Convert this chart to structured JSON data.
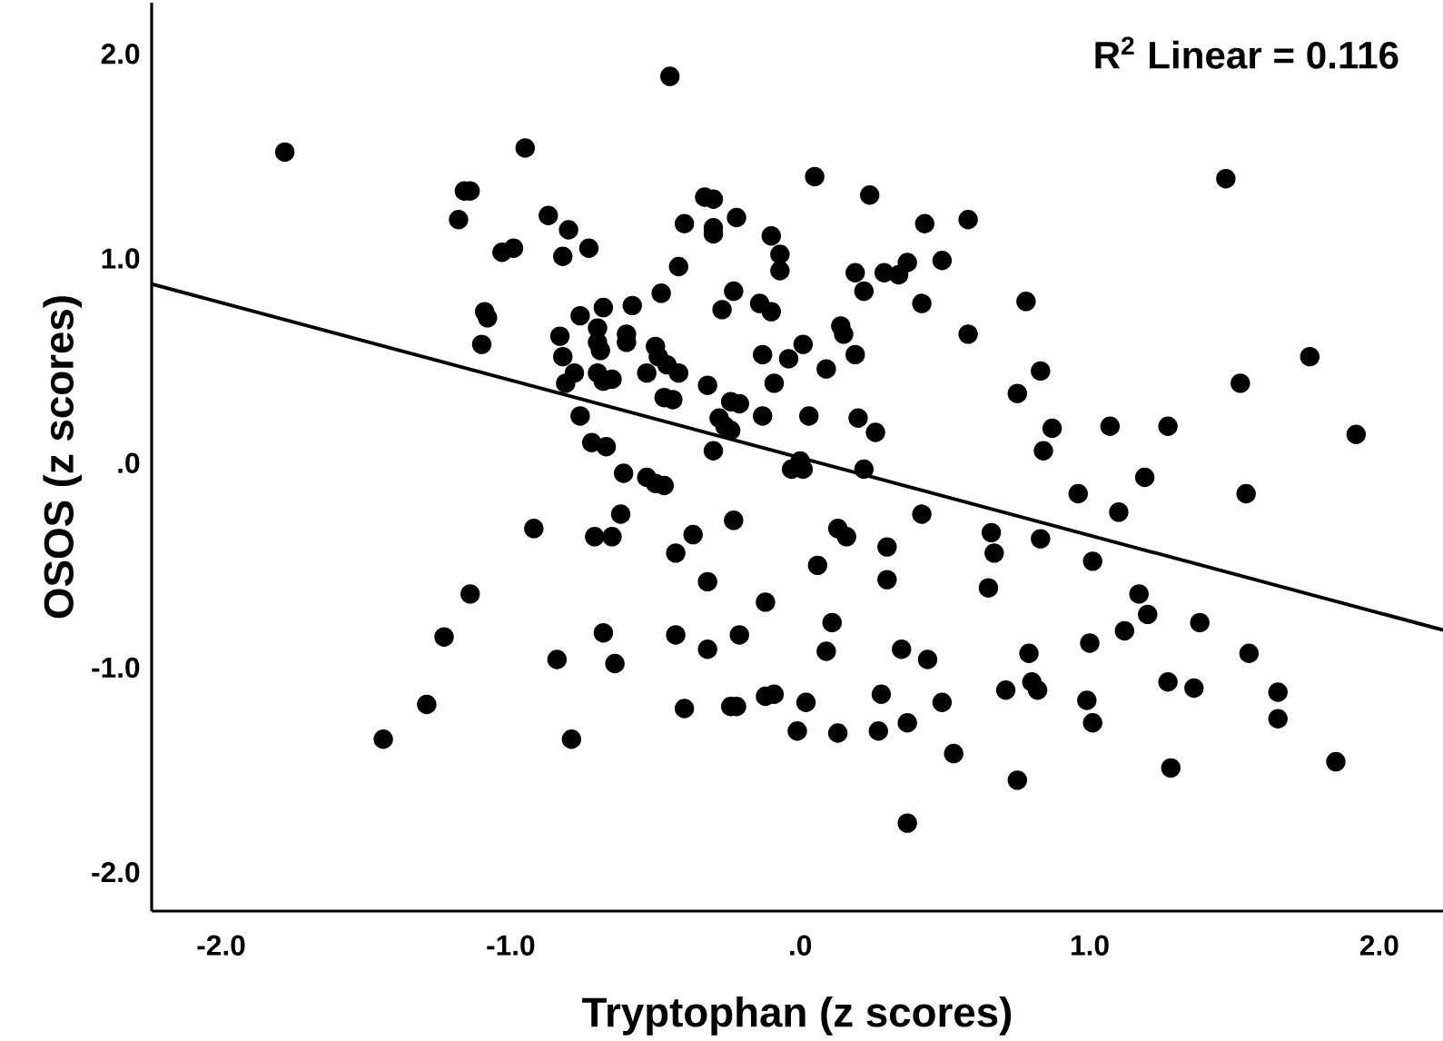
{
  "chart_data": {
    "type": "scatter",
    "xlabel": "Tryptophan (z scores)",
    "ylabel": "OSOS (z scores)",
    "xlim": [
      -2.24,
      2.22
    ],
    "ylim": [
      -2.19,
      2.25
    ],
    "xticks": [
      {
        "value": -2,
        "label": "-2.0"
      },
      {
        "value": -1,
        "label": "-1.0"
      },
      {
        "value": 0,
        "label": ".0"
      },
      {
        "value": 1,
        "label": "1.0"
      },
      {
        "value": 2,
        "label": "2.0"
      }
    ],
    "yticks": [
      {
        "value": -2,
        "label": "-2.0"
      },
      {
        "value": -1,
        "label": "-1.0"
      },
      {
        "value": 0,
        "label": ".0"
      },
      {
        "value": 1,
        "label": "1.0"
      },
      {
        "value": 2,
        "label": "2.0"
      }
    ],
    "annotations": [
      "R$^{2}$ Linear = 0.116"
    ],
    "series": [
      {
        "marker": "circle",
        "color": "#000000",
        "x": [
          -1.78,
          -0.45,
          -0.95,
          0.05,
          1.47,
          -1.16,
          -1.14,
          -1.18,
          -0.87,
          -0.8,
          -0.73,
          -0.82,
          -1.03,
          -0.99,
          -0.33,
          -0.3,
          -0.4,
          -0.3,
          -0.3,
          -0.22,
          -0.1,
          -0.07,
          -0.07,
          0.24,
          0.43,
          0.58,
          0.37,
          0.29,
          0.34,
          0.49,
          -0.42,
          -0.48,
          -1.09,
          -1.08,
          -1.1,
          -0.23,
          -0.27,
          -0.14,
          -0.1,
          0.19,
          0.22,
          0.42,
          0.78,
          -0.58,
          -0.68,
          -0.76,
          -0.83,
          -0.7,
          -0.7,
          -0.69,
          -0.82,
          -0.78,
          -0.81,
          -0.7,
          -0.68,
          -0.65,
          -0.6,
          -0.6,
          -0.5,
          -0.49,
          -0.46,
          -0.53,
          -0.42,
          -0.47,
          -0.44,
          -0.32,
          -0.24,
          -0.21,
          -0.28,
          -0.26,
          -0.24,
          -0.13,
          -0.09,
          -0.04,
          0.01,
          0.09,
          0.14,
          0.15,
          0.19,
          0.58,
          0.83,
          0.75,
          -0.76,
          -0.72,
          -0.67,
          0.03,
          0.2,
          0.26,
          -0.3,
          -0.13,
          0.87,
          1.07,
          1.27,
          1.92,
          1.52,
          1.76,
          0.84,
          -0.61,
          -0.53,
          -0.5,
          -0.47,
          0.0,
          0.01,
          -0.03,
          0.22,
          0.96,
          1.19,
          1.54,
          1.1,
          -0.62,
          -0.92,
          -0.71,
          -0.65,
          -0.37,
          -0.23,
          0.16,
          0.13,
          0.42,
          0.66,
          0.67,
          0.83,
          -0.43,
          0.3,
          1.01,
          0.06,
          0.3,
          -0.32,
          0.65,
          -1.14,
          -0.12,
          1.17,
          1.2,
          1.12,
          1.38,
          -1.23,
          -0.68,
          -0.43,
          -0.21,
          0.11,
          -0.84,
          -0.64,
          -0.32,
          0.09,
          0.35,
          0.44,
          0.79,
          1.0,
          1.55,
          0.71,
          0.8,
          0.82,
          1.27,
          1.36,
          1.65,
          -0.12,
          -0.09,
          0.02,
          0.28,
          0.49,
          0.99,
          -1.29,
          -0.4,
          -0.24,
          -0.22,
          -1.44,
          -0.79,
          -0.01,
          0.13,
          0.27,
          0.37,
          1.01,
          1.65,
          0.53,
          1.28,
          1.85,
          0.75,
          0.37
        ],
        "values": [
          1.52,
          1.89,
          1.54,
          1.4,
          1.39,
          1.33,
          1.33,
          1.19,
          1.21,
          1.14,
          1.05,
          1.01,
          1.03,
          1.05,
          1.3,
          1.29,
          1.17,
          1.15,
          1.12,
          1.2,
          1.11,
          1.02,
          0.94,
          1.31,
          1.17,
          1.19,
          0.98,
          0.93,
          0.92,
          0.99,
          0.96,
          0.83,
          0.74,
          0.71,
          0.58,
          0.84,
          0.75,
          0.78,
          0.74,
          0.93,
          0.84,
          0.78,
          0.79,
          0.77,
          0.76,
          0.72,
          0.62,
          0.66,
          0.59,
          0.55,
          0.52,
          0.44,
          0.39,
          0.44,
          0.4,
          0.41,
          0.63,
          0.59,
          0.57,
          0.52,
          0.48,
          0.44,
          0.44,
          0.32,
          0.31,
          0.38,
          0.3,
          0.29,
          0.22,
          0.18,
          0.16,
          0.53,
          0.39,
          0.51,
          0.58,
          0.46,
          0.67,
          0.63,
          0.53,
          0.63,
          0.45,
          0.34,
          0.23,
          0.1,
          0.08,
          0.23,
          0.22,
          0.15,
          0.06,
          0.23,
          0.17,
          0.18,
          0.18,
          0.14,
          0.39,
          0.52,
          0.06,
          -0.05,
          -0.07,
          -0.1,
          -0.11,
          0.01,
          -0.03,
          -0.03,
          -0.03,
          -0.15,
          -0.07,
          -0.15,
          -0.24,
          -0.25,
          -0.32,
          -0.36,
          -0.36,
          -0.35,
          -0.28,
          -0.36,
          -0.32,
          -0.25,
          -0.34,
          -0.44,
          -0.37,
          -0.44,
          -0.41,
          -0.48,
          -0.5,
          -0.57,
          -0.58,
          -0.61,
          -0.64,
          -0.68,
          -0.64,
          -0.74,
          -0.82,
          -0.78,
          -0.85,
          -0.83,
          -0.84,
          -0.84,
          -0.78,
          -0.96,
          -0.98,
          -0.91,
          -0.92,
          -0.91,
          -0.96,
          -0.93,
          -0.88,
          -0.93,
          -1.11,
          -1.07,
          -1.11,
          -1.07,
          -1.1,
          -1.12,
          -1.14,
          -1.13,
          -1.17,
          -1.13,
          -1.17,
          -1.16,
          -1.18,
          -1.2,
          -1.19,
          -1.19,
          -1.35,
          -1.35,
          -1.31,
          -1.32,
          -1.31,
          -1.27,
          -1.27,
          -1.25,
          -1.42,
          -1.49,
          -1.46,
          -1.55,
          -1.76
        ]
      },
      {
        "type": "line",
        "marker": "none",
        "color": "#000000",
        "line_style": "solid",
        "x": [
          -2.24,
          2.22
        ],
        "values": [
          0.875,
          -0.816
        ]
      }
    ]
  }
}
